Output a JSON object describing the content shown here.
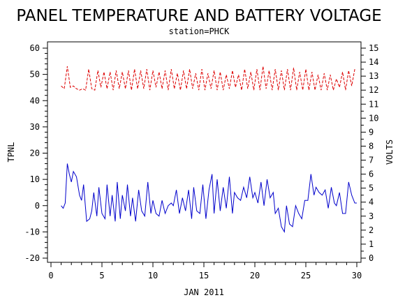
{
  "chart_data": {
    "type": "line",
    "title": "PANEL TEMPERATURE AND BATTERY VOLTAGE",
    "subtitle": "station=PHCK",
    "xlabel": "JAN 2011",
    "ylabel_left": "TPNL",
    "ylabel_right": "VOLTS",
    "xlim": [
      0,
      30
    ],
    "ylim_left": [
      -20,
      60
    ],
    "ylim_right": [
      0,
      15
    ],
    "x_ticks": [
      0,
      5,
      10,
      15,
      20,
      25,
      30
    ],
    "y_ticks_left": [
      -20,
      -10,
      0,
      10,
      20,
      30,
      40,
      50,
      60
    ],
    "y_ticks_right": [
      0,
      1,
      2,
      3,
      4,
      5,
      6,
      7,
      8,
      9,
      10,
      11,
      12,
      13,
      14,
      15
    ],
    "grid": false,
    "legend": "none",
    "series": [
      {
        "axis": "left",
        "color": "#0000cc",
        "style": "solid",
        "x": [
          1.0,
          1.2,
          1.4,
          1.6,
          1.8,
          2.0,
          2.2,
          2.5,
          2.8,
          3.0,
          3.2,
          3.5,
          3.8,
          4.0,
          4.2,
          4.5,
          4.7,
          5.0,
          5.3,
          5.5,
          5.8,
          6.0,
          6.3,
          6.5,
          6.8,
          7.0,
          7.3,
          7.5,
          7.8,
          8.0,
          8.3,
          8.6,
          8.9,
          9.2,
          9.5,
          9.8,
          10.0,
          10.3,
          10.6,
          10.9,
          11.2,
          11.5,
          11.8,
          12.0,
          12.3,
          12.6,
          12.9,
          13.2,
          13.5,
          13.8,
          14.0,
          14.3,
          14.6,
          14.9,
          15.2,
          15.5,
          15.8,
          16.0,
          16.3,
          16.6,
          16.9,
          17.2,
          17.5,
          17.8,
          18.0,
          18.3,
          18.6,
          18.9,
          19.2,
          19.5,
          19.8,
          20.0,
          20.3,
          20.6,
          20.9,
          21.2,
          21.5,
          21.8,
          22.0,
          22.3,
          22.6,
          22.9,
          23.1,
          23.4,
          23.7,
          24.0,
          24.3,
          24.6,
          24.9,
          25.2,
          25.5,
          25.8,
          26.0,
          26.3,
          26.6,
          26.9,
          27.2,
          27.5,
          27.8,
          28.0,
          28.3,
          28.6,
          28.9,
          29.2,
          29.5,
          29.8,
          30.0
        ],
        "values": [
          0,
          -1,
          1,
          16,
          12,
          9,
          13,
          11,
          4,
          2,
          8,
          -6,
          -5,
          -2,
          5,
          -4,
          7,
          -3,
          -5,
          8,
          -4,
          4,
          -6,
          9,
          -5,
          4,
          -2,
          8,
          -4,
          3,
          -6,
          6,
          -2,
          -4,
          9,
          -3,
          2,
          -3,
          -4,
          2,
          -3,
          0,
          1,
          0,
          6,
          -3,
          3,
          -2,
          6,
          -5,
          7,
          -2,
          -3,
          8,
          -5,
          6,
          12,
          -3,
          10,
          -2,
          7,
          -1,
          11,
          -3,
          5,
          3,
          2,
          7,
          3,
          11,
          3,
          5,
          1,
          9,
          0,
          10,
          3,
          5,
          -3,
          -1,
          -8,
          -10,
          0,
          -7,
          -8,
          0,
          -3,
          -5,
          2,
          2,
          12,
          4,
          7,
          5,
          4,
          6,
          -1,
          7,
          1,
          0,
          5,
          -3,
          -3,
          9,
          4,
          1,
          1
        ]
      },
      {
        "axis": "right",
        "color": "#dd0000",
        "style": "dashed",
        "x": [
          1.0,
          1.3,
          1.6,
          1.9,
          2.2,
          2.5,
          2.8,
          3.1,
          3.4,
          3.7,
          4.0,
          4.3,
          4.6,
          4.9,
          5.2,
          5.5,
          5.8,
          6.1,
          6.4,
          6.7,
          7.0,
          7.3,
          7.6,
          7.9,
          8.2,
          8.5,
          8.8,
          9.1,
          9.4,
          9.7,
          10.0,
          10.3,
          10.6,
          10.9,
          11.2,
          11.5,
          11.8,
          12.1,
          12.4,
          12.7,
          13.0,
          13.3,
          13.6,
          13.9,
          14.2,
          14.5,
          14.8,
          15.1,
          15.4,
          15.7,
          16.0,
          16.3,
          16.6,
          16.9,
          17.2,
          17.5,
          17.8,
          18.1,
          18.4,
          18.7,
          19.0,
          19.3,
          19.6,
          19.9,
          20.2,
          20.5,
          20.8,
          21.1,
          21.4,
          21.7,
          22.0,
          22.3,
          22.6,
          22.9,
          23.2,
          23.5,
          23.8,
          24.1,
          24.4,
          24.7,
          25.0,
          25.3,
          25.6,
          25.9,
          26.2,
          26.5,
          26.8,
          27.1,
          27.4,
          27.7,
          28.0,
          28.3,
          28.6,
          28.9,
          29.2,
          29.5,
          29.8
        ],
        "values": [
          12.3,
          12.1,
          13.7,
          12.2,
          12.3,
          12.1,
          12.0,
          12.1,
          12.0,
          13.5,
          12.1,
          12.0,
          13.4,
          12.2,
          13.3,
          12.1,
          13.3,
          12.0,
          13.4,
          12.1,
          13.3,
          12.1,
          13.4,
          12.0,
          13.5,
          12.1,
          13.4,
          12.1,
          13.5,
          12.0,
          13.4,
          12.2,
          13.3,
          12.1,
          13.4,
          12.0,
          13.5,
          12.1,
          13.2,
          12.0,
          13.4,
          12.1,
          13.5,
          12.1,
          13.2,
          12.0,
          13.5,
          12.0,
          13.2,
          12.1,
          13.4,
          12.0,
          13.3,
          12.0,
          13.1,
          12.1,
          13.4,
          12.2,
          13.1,
          12.0,
          13.5,
          12.1,
          13.3,
          12.0,
          13.5,
          12.0,
          13.7,
          12.1,
          13.4,
          12.0,
          13.5,
          12.0,
          13.4,
          12.0,
          13.5,
          12.0,
          13.6,
          12.0,
          13.3,
          12.0,
          13.5,
          12.0,
          13.3,
          12.0,
          13.1,
          12.0,
          13.2,
          12.0,
          13.1,
          12.0,
          12.8,
          12.2,
          13.3,
          12.0,
          13.4,
          12.3,
          13.5
        ]
      }
    ]
  }
}
